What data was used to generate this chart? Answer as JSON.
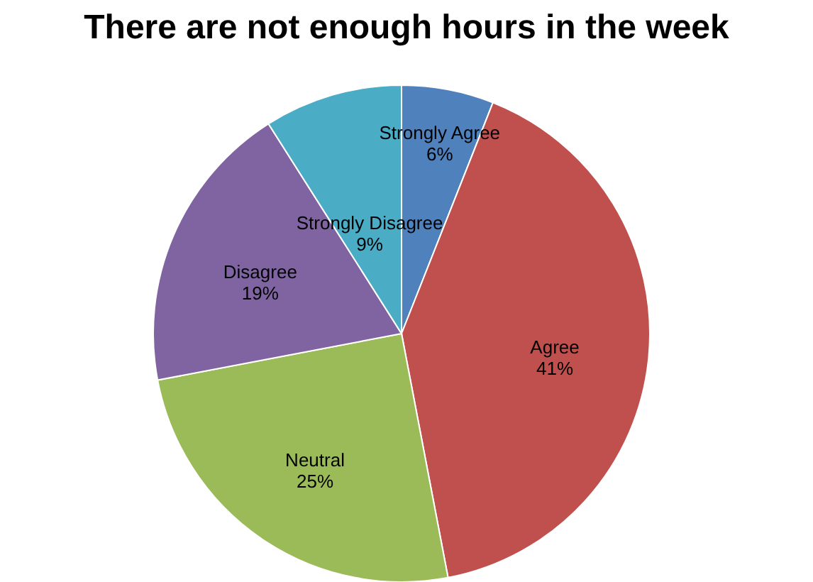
{
  "chart_data": {
    "type": "pie",
    "title": "There are not enough hours in the week",
    "categories": [
      "Strongly Agree",
      "Agree",
      "Neutral",
      "Disagree",
      "Strongly Disagree"
    ],
    "values": [
      6,
      41,
      25,
      19,
      9
    ],
    "value_labels": [
      "6%",
      "41%",
      "25%",
      "19%",
      "9%"
    ],
    "colors": [
      "#4f81bd",
      "#c0504d",
      "#9bbb59",
      "#8064a2",
      "#4bacc6"
    ],
    "legend": false
  }
}
